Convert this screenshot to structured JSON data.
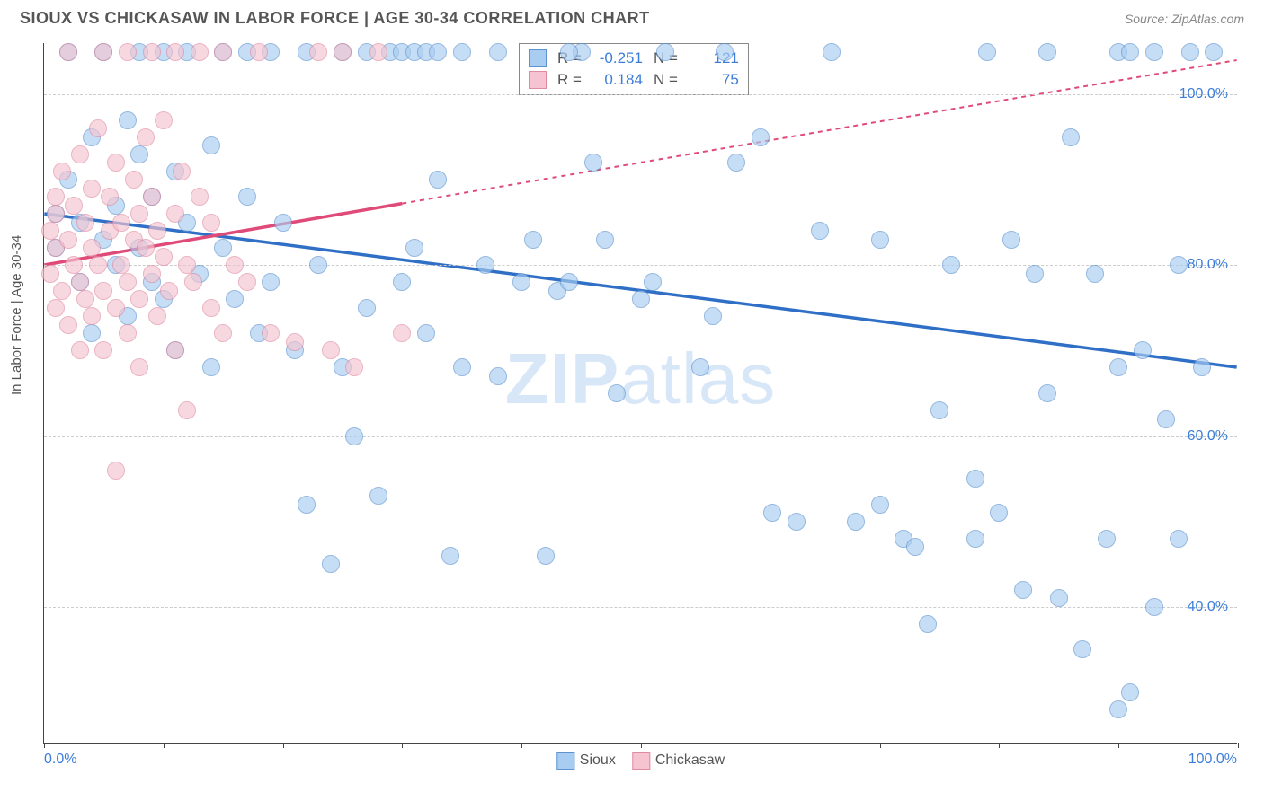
{
  "title": "SIOUX VS CHICKASAW IN LABOR FORCE | AGE 30-34 CORRELATION CHART",
  "source": "Source: ZipAtlas.com",
  "ylabel": "In Labor Force | Age 30-34",
  "watermark_a": "ZIP",
  "watermark_b": "atlas",
  "chart": {
    "type": "scatter",
    "xlim": [
      0,
      100
    ],
    "ylim": [
      24,
      106
    ],
    "x_min_label": "0.0%",
    "x_max_label": "100.0%",
    "y_ticks": [
      40,
      60,
      80,
      100
    ],
    "y_tick_labels": [
      "40.0%",
      "60.0%",
      "80.0%",
      "100.0%"
    ],
    "x_ticks": [
      0,
      10,
      20,
      30,
      40,
      50,
      60,
      70,
      80,
      90,
      100
    ],
    "grid_color": "#cccccc",
    "background_color": "#ffffff",
    "point_radius": 10,
    "series": [
      {
        "name": "Sioux",
        "color_fill": "#a9cdf0",
        "color_stroke": "#5d93d0",
        "trend_color": "#2f6fc6",
        "trend": {
          "x1": 0,
          "y1": 86,
          "x2": 100,
          "y2": 68,
          "dash_from_x": 100
        },
        "R": "-0.251",
        "N": "121",
        "points": [
          [
            1,
            86
          ],
          [
            1,
            82
          ],
          [
            2,
            90
          ],
          [
            2,
            105
          ],
          [
            3,
            78
          ],
          [
            3,
            85
          ],
          [
            4,
            95
          ],
          [
            4,
            72
          ],
          [
            5,
            83
          ],
          [
            5,
            105
          ],
          [
            6,
            80
          ],
          [
            6,
            87
          ],
          [
            7,
            97
          ],
          [
            7,
            74
          ],
          [
            8,
            93
          ],
          [
            8,
            82
          ],
          [
            8,
            105
          ],
          [
            9,
            78
          ],
          [
            9,
            88
          ],
          [
            10,
            105
          ],
          [
            10,
            76
          ],
          [
            11,
            70
          ],
          [
            11,
            91
          ],
          [
            12,
            85
          ],
          [
            12,
            105
          ],
          [
            13,
            79
          ],
          [
            14,
            94
          ],
          [
            14,
            68
          ],
          [
            15,
            105
          ],
          [
            15,
            82
          ],
          [
            16,
            76
          ],
          [
            17,
            105
          ],
          [
            17,
            88
          ],
          [
            18,
            72
          ],
          [
            19,
            78
          ],
          [
            19,
            105
          ],
          [
            20,
            85
          ],
          [
            21,
            70
          ],
          [
            22,
            105
          ],
          [
            22,
            52
          ],
          [
            23,
            80
          ],
          [
            24,
            45
          ],
          [
            25,
            68
          ],
          [
            25,
            105
          ],
          [
            26,
            60
          ],
          [
            27,
            75
          ],
          [
            27,
            105
          ],
          [
            28,
            53
          ],
          [
            29,
            105
          ],
          [
            30,
            78
          ],
          [
            30,
            105
          ],
          [
            31,
            82
          ],
          [
            31,
            105
          ],
          [
            32,
            72
          ],
          [
            32,
            105
          ],
          [
            33,
            105
          ],
          [
            34,
            46
          ],
          [
            35,
            68
          ],
          [
            35,
            105
          ],
          [
            37,
            80
          ],
          [
            38,
            67
          ],
          [
            40,
            78
          ],
          [
            41,
            83
          ],
          [
            42,
            46
          ],
          [
            43,
            77
          ],
          [
            44,
            78
          ],
          [
            45,
            105
          ],
          [
            46,
            92
          ],
          [
            47,
            83
          ],
          [
            48,
            65
          ],
          [
            50,
            76
          ],
          [
            51,
            78
          ],
          [
            52,
            105
          ],
          [
            55,
            68
          ],
          [
            56,
            74
          ],
          [
            57,
            105
          ],
          [
            58,
            92
          ],
          [
            60,
            95
          ],
          [
            61,
            51
          ],
          [
            63,
            50
          ],
          [
            65,
            84
          ],
          [
            66,
            105
          ],
          [
            70,
            83
          ],
          [
            72,
            48
          ],
          [
            73,
            47
          ],
          [
            74,
            38
          ],
          [
            75,
            63
          ],
          [
            76,
            80
          ],
          [
            78,
            48
          ],
          [
            79,
            105
          ],
          [
            80,
            51
          ],
          [
            81,
            83
          ],
          [
            82,
            42
          ],
          [
            83,
            79
          ],
          [
            84,
            65
          ],
          [
            84,
            105
          ],
          [
            85,
            41
          ],
          [
            86,
            95
          ],
          [
            87,
            35
          ],
          [
            88,
            79
          ],
          [
            89,
            48
          ],
          [
            90,
            68
          ],
          [
            90,
            105
          ],
          [
            91,
            30
          ],
          [
            91,
            105
          ],
          [
            92,
            70
          ],
          [
            93,
            105
          ],
          [
            94,
            62
          ],
          [
            95,
            80
          ],
          [
            95,
            48
          ],
          [
            96,
            105
          ],
          [
            97,
            68
          ],
          [
            98,
            105
          ],
          [
            90,
            28
          ],
          [
            93,
            40
          ],
          [
            78,
            55
          ],
          [
            70,
            52
          ],
          [
            68,
            50
          ],
          [
            33,
            90
          ],
          [
            38,
            105
          ],
          [
            44,
            105
          ]
        ]
      },
      {
        "name": "Chickasaw",
        "color_fill": "#f5c4d0",
        "color_stroke": "#e08ba2",
        "trend_color": "#e04a78",
        "trend": {
          "x1": 0,
          "y1": 80,
          "x2": 100,
          "y2": 104,
          "dash_from_x": 30
        },
        "R": "0.184",
        "N": "75",
        "points": [
          [
            0.5,
            84
          ],
          [
            0.5,
            79
          ],
          [
            1,
            86
          ],
          [
            1,
            75
          ],
          [
            1,
            82
          ],
          [
            1,
            88
          ],
          [
            1.5,
            77
          ],
          [
            1.5,
            91
          ],
          [
            2,
            83
          ],
          [
            2,
            73
          ],
          [
            2,
            105
          ],
          [
            2.5,
            80
          ],
          [
            2.5,
            87
          ],
          [
            3,
            78
          ],
          [
            3,
            93
          ],
          [
            3,
            70
          ],
          [
            3.5,
            85
          ],
          [
            3.5,
            76
          ],
          [
            4,
            82
          ],
          [
            4,
            89
          ],
          [
            4,
            74
          ],
          [
            4.5,
            96
          ],
          [
            4.5,
            80
          ],
          [
            5,
            77
          ],
          [
            5,
            70
          ],
          [
            5,
            105
          ],
          [
            5.5,
            84
          ],
          [
            5.5,
            88
          ],
          [
            6,
            75
          ],
          [
            6,
            92
          ],
          [
            6,
            56
          ],
          [
            6.5,
            80
          ],
          [
            6.5,
            85
          ],
          [
            7,
            78
          ],
          [
            7,
            72
          ],
          [
            7,
            105
          ],
          [
            7.5,
            83
          ],
          [
            7.5,
            90
          ],
          [
            8,
            76
          ],
          [
            8,
            86
          ],
          [
            8,
            68
          ],
          [
            8.5,
            82
          ],
          [
            8.5,
            95
          ],
          [
            9,
            79
          ],
          [
            9,
            88
          ],
          [
            9,
            105
          ],
          [
            9.5,
            74
          ],
          [
            9.5,
            84
          ],
          [
            10,
            81
          ],
          [
            10,
            97
          ],
          [
            10.5,
            77
          ],
          [
            11,
            86
          ],
          [
            11,
            70
          ],
          [
            11,
            105
          ],
          [
            11.5,
            91
          ],
          [
            12,
            80
          ],
          [
            12,
            63
          ],
          [
            12.5,
            78
          ],
          [
            13,
            88
          ],
          [
            13,
            105
          ],
          [
            14,
            75
          ],
          [
            14,
            85
          ],
          [
            15,
            72
          ],
          [
            15,
            105
          ],
          [
            16,
            80
          ],
          [
            17,
            78
          ],
          [
            18,
            105
          ],
          [
            19,
            72
          ],
          [
            21,
            71
          ],
          [
            23,
            105
          ],
          [
            24,
            70
          ],
          [
            25,
            105
          ],
          [
            26,
            68
          ],
          [
            28,
            105
          ],
          [
            30,
            72
          ]
        ]
      }
    ]
  },
  "legend_top": {
    "R_label": "R =",
    "N_label": "N ="
  },
  "legend_bottom": {
    "items": [
      "Sioux",
      "Chickasaw"
    ]
  }
}
